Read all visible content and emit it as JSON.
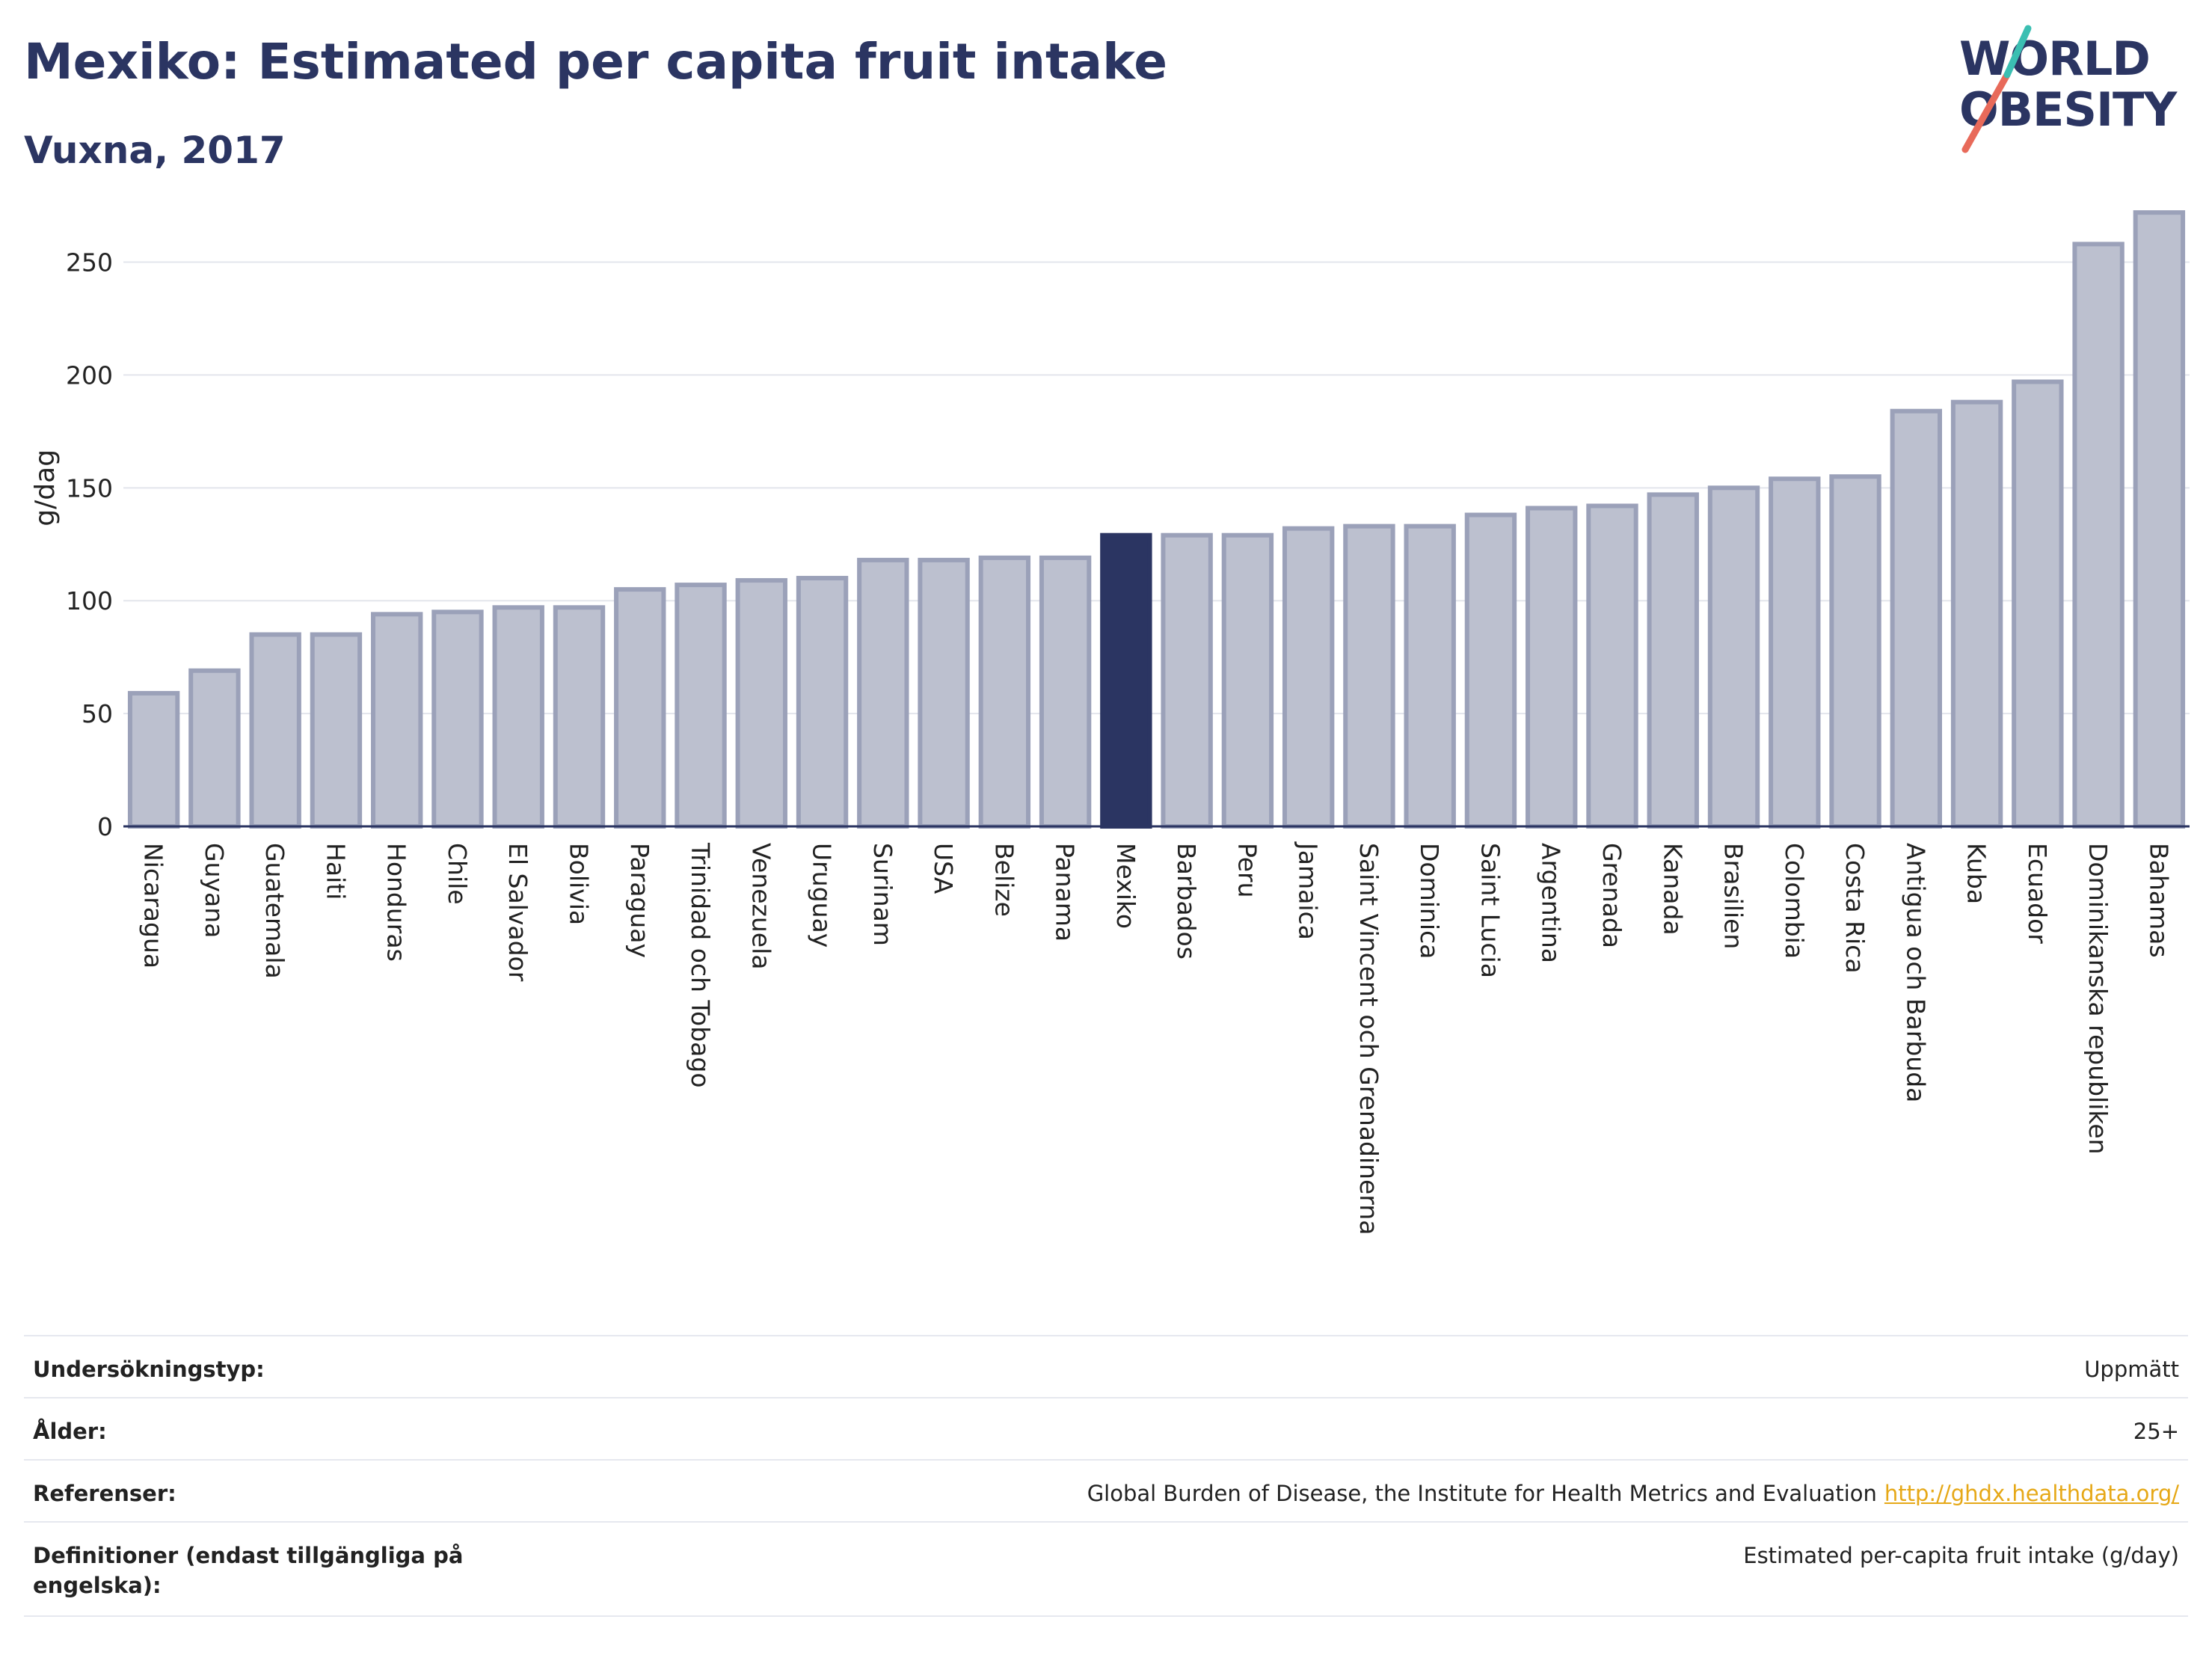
{
  "header": {
    "title": "Mexiko: Estimated per capita fruit intake",
    "subtitle": "Vuxna, 2017"
  },
  "logo": {
    "line1": "WORLD",
    "line2": "OBESITY",
    "colors": [
      "#2b3562",
      "#e86a5a",
      "#3bbfb2"
    ]
  },
  "chart_data": {
    "type": "bar",
    "title": "Mexiko: Estimated per capita fruit intake",
    "subtitle": "Vuxna, 2017",
    "ylabel": "g/dag",
    "xlabel": "",
    "ylim": [
      0,
      280
    ],
    "yticks": [
      0,
      50,
      100,
      150,
      200,
      250
    ],
    "grid": true,
    "highlight": "Mexiko",
    "colors": {
      "bar": "#bcc0cf",
      "bar_edge": "#9ba1b9",
      "highlight": "#2b3562"
    },
    "categories": [
      "Nicaragua",
      "Guyana",
      "Guatemala",
      "Haiti",
      "Honduras",
      "Chile",
      "El Salvador",
      "Bolivia",
      "Paraguay",
      "Trinidad och Tobago",
      "Venezuela",
      "Uruguay",
      "Surinam",
      "USA",
      "Belize",
      "Panama",
      "Mexiko",
      "Barbados",
      "Peru",
      "Jamaica",
      "Saint Vincent och Grenadinerna",
      "Dominica",
      "Saint Lucia",
      "Argentina",
      "Grenada",
      "Kanada",
      "Brasilien",
      "Colombia",
      "Costa Rica",
      "Antigua och Barbuda",
      "Kuba",
      "Ecuador",
      "Dominikanska republiken",
      "Bahamas"
    ],
    "values": [
      59,
      69,
      85,
      85,
      94,
      95,
      97,
      97,
      105,
      107,
      109,
      110,
      118,
      118,
      119,
      119,
      129,
      129,
      129,
      132,
      133,
      133,
      138,
      141,
      142,
      147,
      150,
      154,
      155,
      184,
      188,
      197,
      258,
      272
    ]
  },
  "meta": [
    {
      "label": "Undersökningstyp:",
      "value": "Uppmätt"
    },
    {
      "label": "Ålder:",
      "value": "25+"
    },
    {
      "label": "Referenser:",
      "value": "Global Burden of Disease, the Institute for Health Metrics and Evaluation",
      "link": "http://ghdx.healthdata.org/"
    },
    {
      "label": "Definitioner (endast tillgängliga på engelska):",
      "value": "Estimated per-capita fruit intake (g/day)"
    }
  ]
}
